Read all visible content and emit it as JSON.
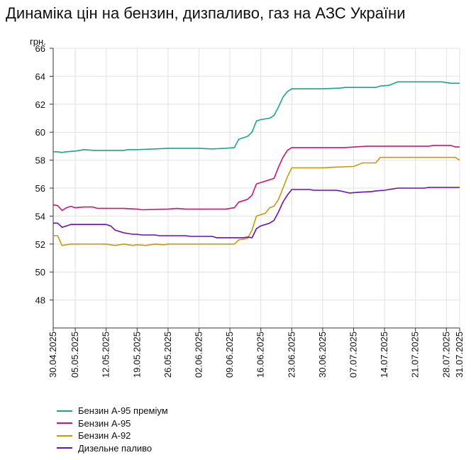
{
  "page": {
    "title": "Динаміка цін на бензин, дизпаливо, газ на АЗС України"
  },
  "chart_data": {
    "type": "line",
    "title": "Динаміка цін на бензин, дизпаливо, газ на АЗС України",
    "ylabel": "грн.",
    "xlabel": "",
    "ylim": [
      46,
      66
    ],
    "yticks": [
      48,
      50,
      52,
      54,
      56,
      58,
      60,
      62,
      64,
      66
    ],
    "grid": true,
    "legend_position": "bottom-left",
    "x_tick_labels": [
      "30.04.2025",
      "05.05.2025",
      "12.05.2025",
      "19.05.2025",
      "26.05.2025",
      "02.06.2025",
      "09.06.2025",
      "16.06.2025",
      "23.06.2025",
      "30.06.2025",
      "07.07.2025",
      "14.07.2025",
      "21.07.2025",
      "28.07.2025",
      "31.07.2025"
    ],
    "x_tick_days": [
      0,
      5,
      12,
      19,
      26,
      33,
      40,
      47,
      54,
      61,
      68,
      75,
      82,
      89,
      92
    ],
    "series": [
      {
        "name": "Бензин А-95 преміум",
        "color": "#1aa58a",
        "points": [
          [
            "30.04.2025",
            58.6
          ],
          [
            "01.05.2025",
            58.6
          ],
          [
            "02.05.2025",
            58.55
          ],
          [
            "03.05.2025",
            58.6
          ],
          [
            "05.05.2025",
            58.65
          ],
          [
            "06.05.2025",
            58.7
          ],
          [
            "07.05.2025",
            58.75
          ],
          [
            "09.05.2025",
            58.7
          ],
          [
            "12.05.2025",
            58.7
          ],
          [
            "14.05.2025",
            58.7
          ],
          [
            "16.05.2025",
            58.7
          ],
          [
            "17.05.2025",
            58.75
          ],
          [
            "19.05.2025",
            58.75
          ],
          [
            "23.05.2025",
            58.8
          ],
          [
            "26.05.2025",
            58.85
          ],
          [
            "30.05.2025",
            58.85
          ],
          [
            "02.06.2025",
            58.85
          ],
          [
            "05.06.2025",
            58.8
          ],
          [
            "08.06.2025",
            58.85
          ],
          [
            "10.06.2025",
            58.9
          ],
          [
            "11.06.2025",
            59.5
          ],
          [
            "13.06.2025",
            59.7
          ],
          [
            "14.06.2025",
            60.0
          ],
          [
            "15.06.2025",
            60.8
          ],
          [
            "16.06.2025",
            60.9
          ],
          [
            "18.06.2025",
            61.0
          ],
          [
            "19.06.2025",
            61.2
          ],
          [
            "20.06.2025",
            61.8
          ],
          [
            "21.06.2025",
            62.5
          ],
          [
            "22.06.2025",
            62.9
          ],
          [
            "23.06.2025",
            63.1
          ],
          [
            "30.06.2025",
            63.1
          ],
          [
            "04.07.2025",
            63.15
          ],
          [
            "05.07.2025",
            63.2
          ],
          [
            "12.07.2025",
            63.2
          ],
          [
            "13.07.2025",
            63.3
          ],
          [
            "15.07.2025",
            63.35
          ],
          [
            "17.07.2025",
            63.6
          ],
          [
            "27.07.2025",
            63.6
          ],
          [
            "29.07.2025",
            63.5
          ],
          [
            "31.07.2025",
            63.5
          ]
        ]
      },
      {
        "name": "Бензин А-95",
        "color": "#cc1670",
        "points": [
          [
            "30.04.2025",
            54.8
          ],
          [
            "01.05.2025",
            54.75
          ],
          [
            "02.05.2025",
            54.4
          ],
          [
            "03.05.2025",
            54.6
          ],
          [
            "04.05.2025",
            54.7
          ],
          [
            "05.05.2025",
            54.6
          ],
          [
            "07.05.2025",
            54.65
          ],
          [
            "09.05.2025",
            54.65
          ],
          [
            "10.05.2025",
            54.55
          ],
          [
            "12.05.2025",
            54.55
          ],
          [
            "16.05.2025",
            54.55
          ],
          [
            "19.05.2025",
            54.5
          ],
          [
            "20.05.2025",
            54.45
          ],
          [
            "26.05.2025",
            54.5
          ],
          [
            "28.05.2025",
            54.55
          ],
          [
            "30.05.2025",
            54.5
          ],
          [
            "02.06.2025",
            54.5
          ],
          [
            "08.06.2025",
            54.5
          ],
          [
            "10.06.2025",
            54.6
          ],
          [
            "11.06.2025",
            55.0
          ],
          [
            "13.06.2025",
            55.2
          ],
          [
            "14.06.2025",
            55.5
          ],
          [
            "15.06.2025",
            56.3
          ],
          [
            "16.06.2025",
            56.4
          ],
          [
            "18.06.2025",
            56.6
          ],
          [
            "19.06.2025",
            56.7
          ],
          [
            "20.06.2025",
            57.5
          ],
          [
            "21.06.2025",
            58.2
          ],
          [
            "22.06.2025",
            58.7
          ],
          [
            "23.06.2025",
            58.9
          ],
          [
            "30.06.2025",
            58.9
          ],
          [
            "05.07.2025",
            58.9
          ],
          [
            "10.07.2025",
            59.0
          ],
          [
            "24.07.2025",
            59.0
          ],
          [
            "25.07.2025",
            59.05
          ],
          [
            "29.07.2025",
            59.05
          ],
          [
            "30.07.2025",
            58.95
          ],
          [
            "31.07.2025",
            58.95
          ]
        ]
      },
      {
        "name": "Бензин А-92",
        "color": "#c49a12",
        "points": [
          [
            "30.04.2025",
            52.6
          ],
          [
            "01.05.2025",
            52.6
          ],
          [
            "02.05.2025",
            51.9
          ],
          [
            "03.05.2025",
            51.95
          ],
          [
            "04.05.2025",
            52.0
          ],
          [
            "12.05.2025",
            52.0
          ],
          [
            "14.05.2025",
            51.9
          ],
          [
            "16.05.2025",
            52.0
          ],
          [
            "18.05.2025",
            51.9
          ],
          [
            "19.05.2025",
            51.95
          ],
          [
            "21.05.2025",
            51.9
          ],
          [
            "23.05.2025",
            52.0
          ],
          [
            "25.05.2025",
            51.95
          ],
          [
            "26.05.2025",
            52.0
          ],
          [
            "09.06.2025",
            52.0
          ],
          [
            "10.06.2025",
            52.0
          ],
          [
            "11.06.2025",
            52.3
          ],
          [
            "13.06.2025",
            52.4
          ],
          [
            "14.06.2025",
            53.0
          ],
          [
            "15.06.2025",
            54.0
          ],
          [
            "16.06.2025",
            54.1
          ],
          [
            "17.06.2025",
            54.2
          ],
          [
            "18.06.2025",
            54.6
          ],
          [
            "19.06.2025",
            54.7
          ],
          [
            "20.06.2025",
            55.2
          ],
          [
            "21.06.2025",
            56.0
          ],
          [
            "22.06.2025",
            56.8
          ],
          [
            "23.06.2025",
            57.45
          ],
          [
            "30.06.2025",
            57.45
          ],
          [
            "03.07.2025",
            57.5
          ],
          [
            "07.07.2025",
            57.55
          ],
          [
            "09.07.2025",
            57.8
          ],
          [
            "12.07.2025",
            57.8
          ],
          [
            "13.07.2025",
            58.2
          ],
          [
            "30.07.2025",
            58.2
          ],
          [
            "31.07.2025",
            58.0
          ]
        ]
      },
      {
        "name": "Дизельне паливо",
        "color": "#6a0fb3",
        "points": [
          [
            "30.04.2025",
            53.5
          ],
          [
            "01.05.2025",
            53.5
          ],
          [
            "02.05.2025",
            53.2
          ],
          [
            "03.05.2025",
            53.3
          ],
          [
            "04.05.2025",
            53.4
          ],
          [
            "12.05.2025",
            53.4
          ],
          [
            "13.05.2025",
            53.3
          ],
          [
            "14.05.2025",
            53.0
          ],
          [
            "16.05.2025",
            52.8
          ],
          [
            "18.05.2025",
            52.7
          ],
          [
            "19.05.2025",
            52.7
          ],
          [
            "20.05.2025",
            52.65
          ],
          [
            "23.05.2025",
            52.65
          ],
          [
            "24.05.2025",
            52.6
          ],
          [
            "30.05.2025",
            52.6
          ],
          [
            "31.05.2025",
            52.55
          ],
          [
            "05.06.2025",
            52.55
          ],
          [
            "06.06.2025",
            52.45
          ],
          [
            "12.06.2025",
            52.45
          ],
          [
            "13.06.2025",
            52.5
          ],
          [
            "14.06.2025",
            52.45
          ],
          [
            "15.06.2025",
            53.1
          ],
          [
            "16.06.2025",
            53.3
          ],
          [
            "17.06.2025",
            53.4
          ],
          [
            "18.06.2025",
            53.5
          ],
          [
            "19.06.2025",
            53.7
          ],
          [
            "20.06.2025",
            54.3
          ],
          [
            "21.06.2025",
            55.0
          ],
          [
            "22.06.2025",
            55.5
          ],
          [
            "23.06.2025",
            55.9
          ],
          [
            "27.06.2025",
            55.9
          ],
          [
            "28.06.2025",
            55.85
          ],
          [
            "03.07.2025",
            55.85
          ],
          [
            "04.07.2025",
            55.8
          ],
          [
            "06.07.2025",
            55.65
          ],
          [
            "08.07.2025",
            55.7
          ],
          [
            "11.07.2025",
            55.75
          ],
          [
            "12.07.2025",
            55.8
          ],
          [
            "14.07.2025",
            55.85
          ],
          [
            "17.07.2025",
            56.0
          ],
          [
            "23.07.2025",
            56.0
          ],
          [
            "24.07.2025",
            56.05
          ],
          [
            "31.07.2025",
            56.05
          ]
        ]
      }
    ]
  }
}
